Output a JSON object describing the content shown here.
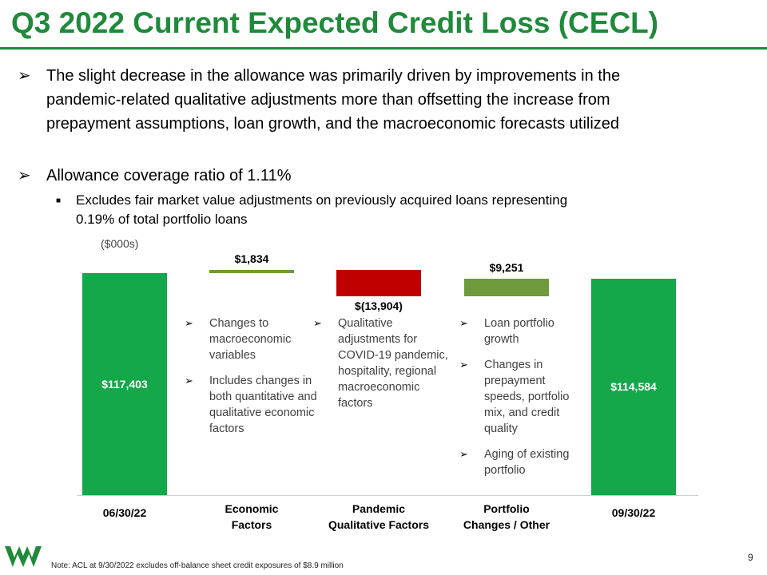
{
  "title": "Q3 2022 Current Expected Credit Loss (CECL)",
  "bullets": [
    {
      "lines": [
        "The slight decrease in the allowance was primarily driven by improvements in the",
        "pandemic-related qualitative adjustments more than offsetting the increase from",
        "prepayment assumptions, loan growth, and the macroeconomic forecasts utilized"
      ]
    },
    {
      "lines": [
        "Allowance coverage ratio of 1.11%"
      ]
    }
  ],
  "sub_bullet": {
    "lines": [
      "Excludes fair market value adjustments on previously acquired loans representing",
      "0.19% of total portfolio loans"
    ]
  },
  "chart_data": {
    "type": "bar",
    "subtype": "waterfall",
    "units_label": "($000s)",
    "categories": [
      "06/30/22",
      "Economic Factors",
      "Pandemic Qualitative Factors",
      "Portfolio Changes / Other",
      "09/30/22"
    ],
    "category_labels": [
      "06/30/22",
      "Economic\nFactors",
      "Pandemic\nQualitative Factors",
      "Portfolio\nChanges / Other",
      "09/30/22"
    ],
    "values": [
      117403,
      1834,
      -13904,
      9251,
      114584
    ],
    "value_labels": [
      "$117,403",
      "$1,834",
      "$(13,904)",
      "$9,251",
      "$114,584"
    ],
    "kinds": [
      "total",
      "delta",
      "delta",
      "delta",
      "total"
    ],
    "colors": [
      "#14a84b",
      "#6f9a3c",
      "#c00000",
      "#6f9a3c",
      "#14a84b"
    ],
    "grid": false,
    "legend": "none"
  },
  "driver_notes": {
    "economic": [
      "Changes to macroeconomic variables",
      "Includes changes in both quantitative and qualitative economic factors"
    ],
    "pandemic": [
      "Qualitative adjustments for COVID-19 pandemic, hospitality, regional macroeconomic factors"
    ],
    "portfolio": [
      "Loan portfolio growth",
      "Changes in prepayment speeds, portfolio mix, and credit quality",
      "Aging of existing portfolio"
    ]
  },
  "footnote": "Note: ACL at 9/30/2022 excludes off-balance sheet credit exposures of $8.9 million",
  "page_number": "9",
  "bullet_mark": "➢",
  "sub_bullet_mark": "■",
  "colors": {
    "brand": "#1f8a3a"
  }
}
